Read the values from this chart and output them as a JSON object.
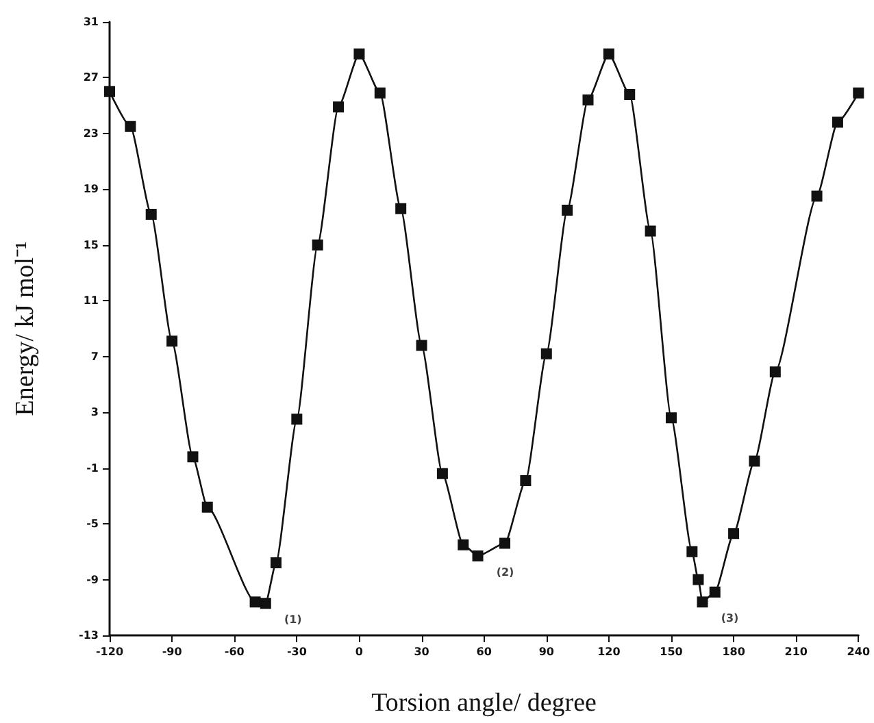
{
  "chart_data": {
    "type": "line",
    "xlabel": "Torsion angle/ degree",
    "ylabel": "Energy/ kJ mol⁻¹",
    "series": [
      {
        "color": "#111111",
        "x": [
          -120,
          -110,
          -100,
          -90,
          -80,
          -73,
          -50,
          -45,
          -40,
          -30,
          -20,
          -10,
          0,
          10,
          20,
          30,
          40,
          50,
          57,
          70,
          80,
          90,
          100,
          110,
          120,
          130,
          140,
          150,
          160,
          163,
          165,
          171,
          180,
          190,
          200,
          220,
          230,
          240
        ],
        "values": [
          26,
          23.5,
          17.2,
          8.1,
          -0.2,
          -3.8,
          -10.6,
          -10.7,
          -7.8,
          2.5,
          15,
          24.9,
          28.7,
          25.9,
          17.6,
          7.8,
          -1.4,
          -6.5,
          -7.3,
          -6.4,
          -1.9,
          7.2,
          17.5,
          25.4,
          28.7,
          25.8,
          16,
          2.6,
          -7,
          -9,
          -10.6,
          -9.9,
          -5.7,
          -0.5,
          5.9,
          18.5,
          23.8,
          25.9
        ]
      }
    ],
    "xlim": [
      -120,
      240
    ],
    "xticks": [
      -120,
      -90,
      -60,
      -30,
      0,
      30,
      60,
      90,
      120,
      150,
      180,
      210,
      240
    ],
    "ylim": [
      -13,
      31
    ],
    "yticks": [
      -13,
      -9,
      -5,
      -1,
      3,
      7,
      11,
      15,
      19,
      23,
      27,
      31
    ],
    "annotations": [
      {
        "text": "(1)",
        "x": -45,
        "y": -10.7
      },
      {
        "text": "(2)",
        "x": 57,
        "y": -7.3
      },
      {
        "text": "(3)",
        "x": 165,
        "y": -10.6
      }
    ],
    "marker": "square",
    "line_style": "solid"
  }
}
